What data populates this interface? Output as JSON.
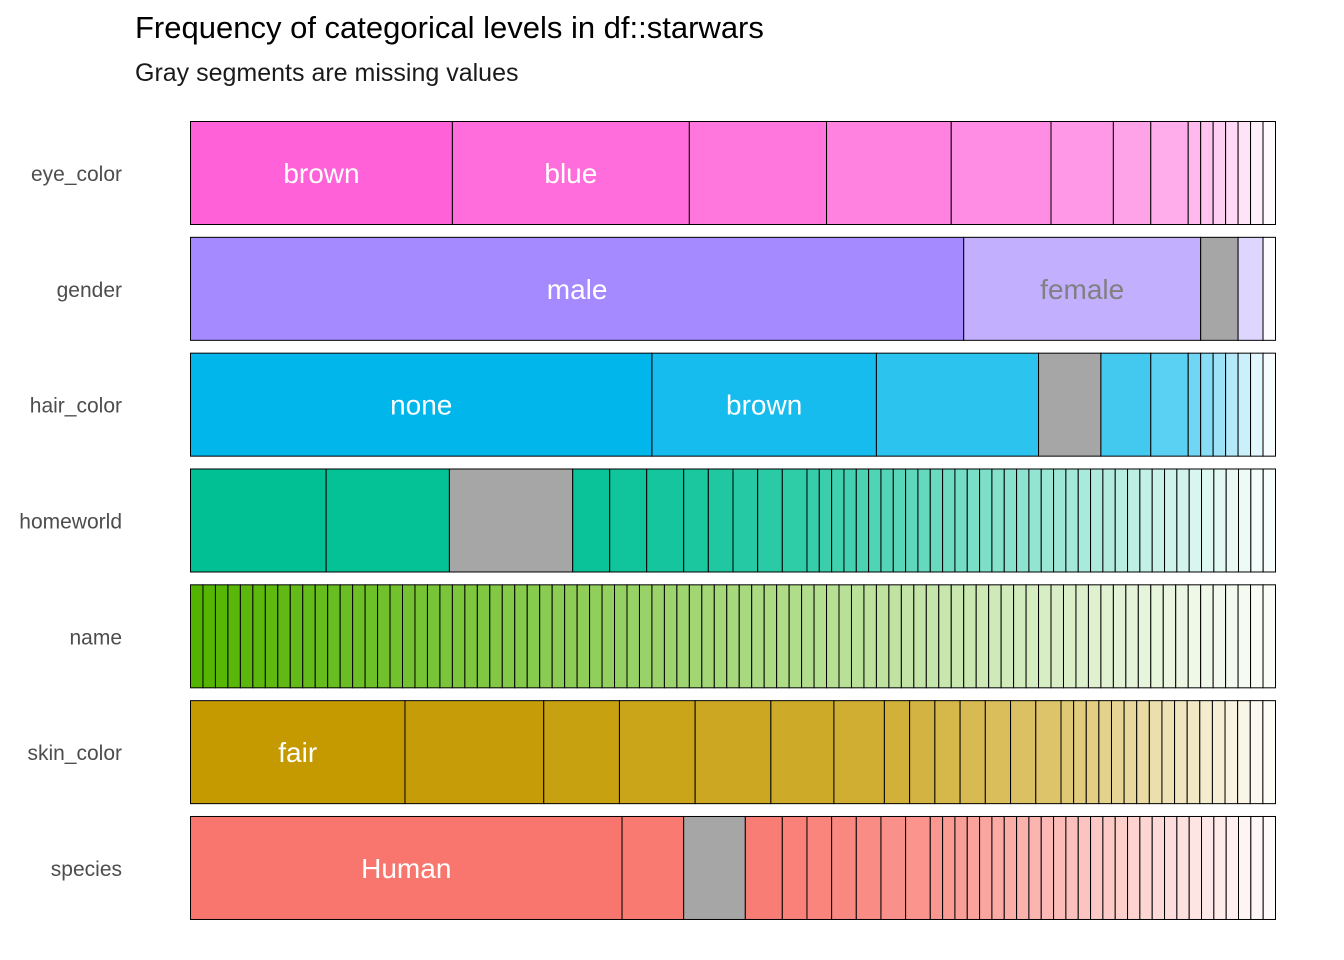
{
  "chart_data": {
    "type": "bar",
    "title": "Frequency of categorical levels in df::starwars",
    "subtitle": "Gray segments are missing values",
    "xlabel": "",
    "ylabel": "",
    "total": 87,
    "missing_color": "#A6A6A6",
    "series": [
      {
        "name": "eye_color",
        "color": "#FF61D8",
        "counts": [
          21,
          19,
          11,
          10,
          8,
          5,
          3,
          3,
          1,
          1,
          1,
          1,
          1,
          1,
          1
        ],
        "missing_index": null,
        "labels": {
          "0": "brown",
          "1": "blue"
        },
        "label_color": "#FFFFFF"
      },
      {
        "name": "gender",
        "color": "#A58AFF",
        "counts": [
          62,
          19,
          3,
          2,
          1
        ],
        "missing_index": 2,
        "labels": {
          "0": "male",
          "1": "female"
        },
        "label_color": "#FFFFFF",
        "label_colors": {
          "1": "#808080"
        }
      },
      {
        "name": "hair_color",
        "color": "#00B6EB",
        "counts": [
          37,
          18,
          13,
          5,
          4,
          3,
          1,
          1,
          1,
          1,
          1,
          1,
          1
        ],
        "missing_index": 3,
        "labels": {
          "0": "none",
          "1": "brown"
        },
        "label_color": "#FFFFFF"
      },
      {
        "name": "homeworld",
        "color": "#00C094",
        "counts": [
          11,
          10,
          10,
          3,
          3,
          3,
          2,
          2,
          2,
          2,
          2,
          1,
          1,
          1,
          1,
          1,
          1,
          1,
          1,
          1,
          1,
          1,
          1,
          1,
          1,
          1,
          1,
          1,
          1,
          1,
          1,
          1,
          1,
          1,
          1,
          1,
          1,
          1,
          1,
          1,
          1,
          1,
          1,
          1,
          1,
          1,
          1,
          1,
          1
        ],
        "missing_index": 2,
        "labels": {},
        "label_color": "#FFFFFF"
      },
      {
        "name": "name",
        "color": "#53B400",
        "counts": [
          1,
          1,
          1,
          1,
          1,
          1,
          1,
          1,
          1,
          1,
          1,
          1,
          1,
          1,
          1,
          1,
          1,
          1,
          1,
          1,
          1,
          1,
          1,
          1,
          1,
          1,
          1,
          1,
          1,
          1,
          1,
          1,
          1,
          1,
          1,
          1,
          1,
          1,
          1,
          1,
          1,
          1,
          1,
          1,
          1,
          1,
          1,
          1,
          1,
          1,
          1,
          1,
          1,
          1,
          1,
          1,
          1,
          1,
          1,
          1,
          1,
          1,
          1,
          1,
          1,
          1,
          1,
          1,
          1,
          1,
          1,
          1,
          1,
          1,
          1,
          1,
          1,
          1,
          1,
          1,
          1,
          1,
          1,
          1,
          1,
          1,
          1
        ],
        "missing_index": null,
        "labels": {},
        "label_color": "#FFFFFF"
      },
      {
        "name": "skin_color",
        "color": "#C49A00",
        "counts": [
          17,
          11,
          6,
          6,
          6,
          5,
          4,
          2,
          2,
          2,
          2,
          2,
          2,
          2,
          1,
          1,
          1,
          1,
          1,
          1,
          1,
          1,
          1,
          1,
          1,
          1,
          1,
          1,
          1,
          1,
          1
        ],
        "missing_index": null,
        "labels": {
          "0": "fair"
        },
        "label_color": "#FFFFFF"
      },
      {
        "name": "species",
        "color": "#F8766D",
        "counts": [
          35,
          5,
          5,
          3,
          2,
          2,
          2,
          2,
          2,
          2,
          1,
          1,
          1,
          1,
          1,
          1,
          1,
          1,
          1,
          1,
          1,
          1,
          1,
          1,
          1,
          1,
          1,
          1,
          1,
          1,
          1,
          1,
          1,
          1,
          1,
          1,
          1,
          1
        ],
        "missing_index": 2,
        "labels": {
          "0": "Human"
        },
        "label_color": "#FFFFFF"
      }
    ]
  }
}
